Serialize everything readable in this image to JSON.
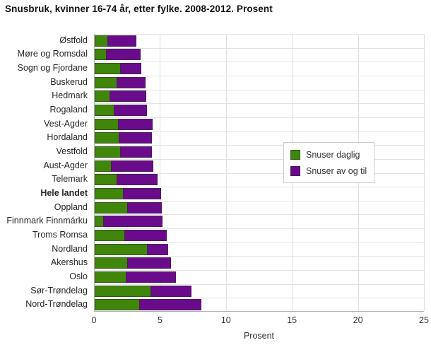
{
  "title": "Snusbruk, kvinner 16-74 år, etter fylke. 2008-2012. Prosent",
  "colors": {
    "daily": "#3f860b",
    "occasional": "#6a0b8c",
    "grid": "#e0e0e0",
    "axis": "#b3b3b3",
    "text": "#333333"
  },
  "legend": {
    "items": [
      {
        "label": "Snuser daglig",
        "color_key": "daily"
      },
      {
        "label": "Snuser av og til",
        "color_key": "occasional"
      }
    ]
  },
  "xaxis": {
    "label": "Prosent",
    "ticks": [
      "0",
      "5",
      "10",
      "15",
      "20",
      "25"
    ]
  },
  "chart_data": {
    "type": "bar",
    "orientation": "horizontal",
    "stacked": true,
    "grid": true,
    "legend_position": "middle-right",
    "title": "Snusbruk, kvinner 16-74 år, etter fylke. 2008-2012. Prosent",
    "xlabel": "Prosent",
    "xlim": [
      0,
      25
    ],
    "xticks": [
      0,
      5,
      10,
      15,
      20,
      25
    ],
    "emphasized_category": "Hele landet",
    "categories": [
      "Østfold",
      "Møre og Romsdal",
      "Sogn og Fjordane",
      "Buskerud",
      "Hedmark",
      "Rogaland",
      "Vest-Agder",
      "Hordaland",
      "Vestfold",
      "Aust-Agder",
      "Telemark",
      "Hele landet",
      "Oppland",
      "Finnmark Finnmárku",
      "Troms Romsa",
      "Nordland",
      "Akershus",
      "Oslo",
      "Sør-Trøndelag",
      "Nord-Trøndelag"
    ],
    "series": [
      {
        "name": "Snuser daglig",
        "color": "#3f860b",
        "values": [
          1.0,
          0.9,
          2.0,
          1.7,
          1.2,
          1.5,
          1.8,
          1.9,
          2.0,
          1.3,
          1.7,
          2.2,
          2.5,
          0.7,
          2.3,
          4.0,
          2.5,
          2.4,
          4.3,
          3.4
        ]
      },
      {
        "name": "Snuser av og til",
        "color": "#6a0b8c",
        "values": [
          2.2,
          2.6,
          1.6,
          2.2,
          2.8,
          2.5,
          2.6,
          2.5,
          2.4,
          3.2,
          3.1,
          2.9,
          2.6,
          4.5,
          3.2,
          1.6,
          3.3,
          3.8,
          3.1,
          4.7
        ]
      }
    ]
  }
}
